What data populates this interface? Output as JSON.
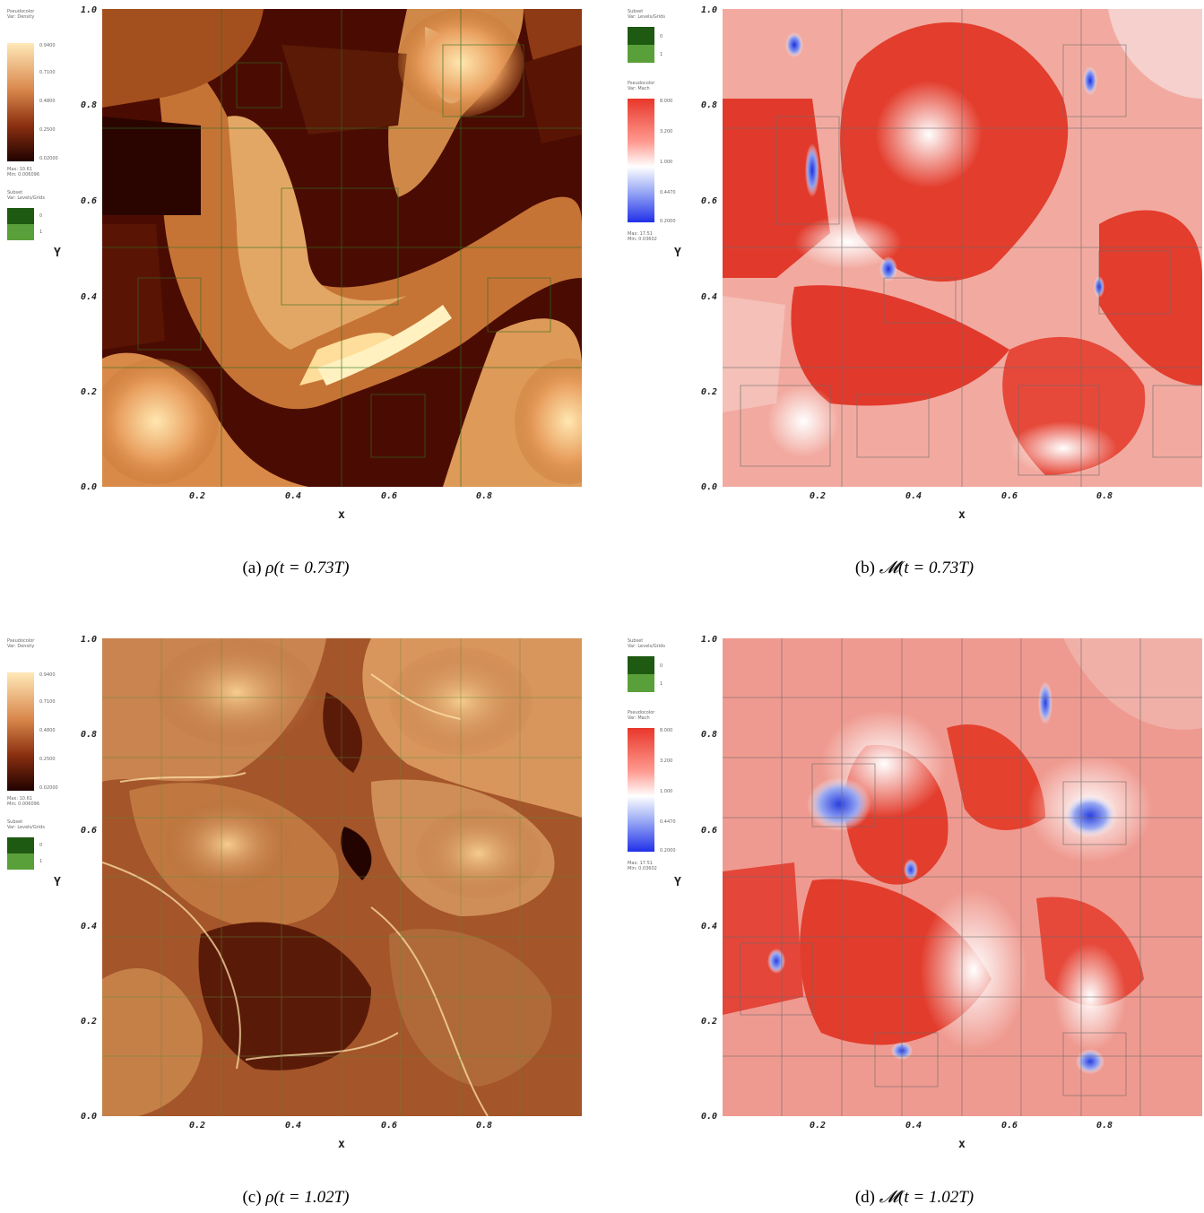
{
  "axis": {
    "y_ticks": [
      "0.0",
      "0.2",
      "0.4",
      "0.6",
      "0.8",
      "1.0"
    ],
    "x_ticks": [
      "0.2",
      "0.4",
      "0.6",
      "0.8"
    ],
    "x_name": "x",
    "y_name": "Y"
  },
  "panels": [
    {
      "id": "a",
      "caption_prefix": "(a) ",
      "caption_symbol": "ρ",
      "caption_args": "(t = 0.73T)",
      "colormap": "density",
      "legend_text": "Pseudocolor\nVar: Density",
      "legend_ticks": [
        "0.9400",
        "0.7100",
        "0.4800",
        "0.2500",
        "0.02000"
      ],
      "legend_extra": "Max: 10.61\nMin: 0.006096",
      "mesh_text": "Subset\nVar: Levels/Grids",
      "mesh_ticks": [
        "0",
        "1"
      ]
    },
    {
      "id": "b",
      "caption_prefix": "(b) ",
      "caption_symbol": "𝓜",
      "caption_args": "(t = 0.73T)",
      "colormap": "mach",
      "legend_text": "Pseudocolor\nVar: Mach",
      "legend_ticks": [
        "8.000",
        "3.200",
        "1.000",
        "0.4470",
        "0.2000"
      ],
      "legend_extra": "Max: 17.51\nMin: 0.03602",
      "mesh_text": "Subset\nVar: Levels/Grids",
      "mesh_ticks": [
        "0",
        "1"
      ]
    },
    {
      "id": "c",
      "caption_prefix": "(c) ",
      "caption_symbol": "ρ",
      "caption_args": "(t = 1.02T)",
      "colormap": "density",
      "legend_text": "Pseudocolor\nVar: Density",
      "legend_ticks": [
        "0.9400",
        "0.7100",
        "0.4800",
        "0.2500",
        "0.02000"
      ],
      "legend_extra": "Max: 10.61\nMin: 0.006096",
      "mesh_text": "Subset\nVar: Levels/Grids",
      "mesh_ticks": [
        "0",
        "1"
      ]
    },
    {
      "id": "d",
      "caption_prefix": "(d) ",
      "caption_symbol": "𝓜",
      "caption_args": "(t = 1.02T)",
      "colormap": "mach",
      "legend_text": "Pseudocolor\nVar: Mach",
      "legend_ticks": [
        "8.000",
        "3.200",
        "1.000",
        "0.4470",
        "0.2000"
      ],
      "legend_extra": "Max: 17.51\nMin: 0.03602",
      "mesh_text": "Subset\nVar: Levels/Grids",
      "mesh_ticks": [
        "0",
        "1"
      ]
    }
  ],
  "colors": {
    "density_dark": "#3a0a00",
    "density_mid": "#b8621e",
    "density_light": "#ffe0a0",
    "mach_red": "#e23a2a",
    "mach_white": "#ffffff",
    "mach_blue": "#2b3fd8",
    "mesh_green": "#2f6e22",
    "mesh_grey": "#6a6a6a"
  }
}
